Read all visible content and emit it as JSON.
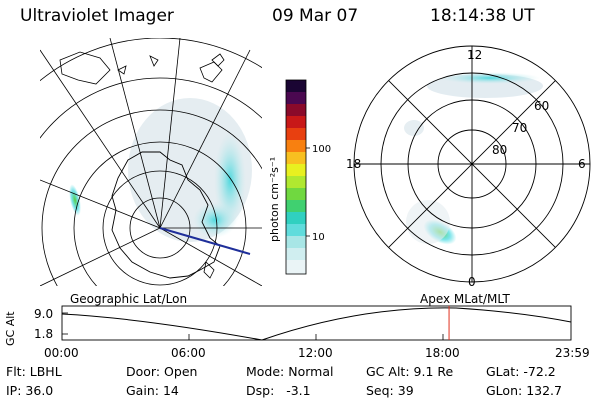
{
  "header": {
    "instrument": "Ultraviolet Imager",
    "date": "09 Mar 07",
    "time": "18:14:38 UT"
  },
  "colorbar": {
    "unit": "photon cm⁻²s⁻¹",
    "ticks": [
      "100",
      "10"
    ]
  },
  "polar_plot": {
    "mlt_labels": [
      "12",
      "18",
      "6",
      "0"
    ],
    "lat_labels": [
      "60",
      "70",
      "80"
    ]
  },
  "timeline": {
    "left_title": "Geographic Lat/Lon",
    "right_title": "Apex MLat/MLT",
    "ylabel": "GC Alt",
    "ymax": "9.0",
    "ymin": "1.8",
    "xticks": [
      "00:00",
      "06:00",
      "12:00",
      "18:00",
      "23:59"
    ],
    "current_marker_hours": 18.25
  },
  "status": {
    "flt_label": "Flt:",
    "flt_value": "LBHL",
    "ip_label": "IP:",
    "ip_value": "36.0",
    "door_label": "Door:",
    "door_value": "Open",
    "gain_label": "Gain:",
    "gain_value": "14",
    "mode_label": "Mode:",
    "mode_value": "Normal",
    "dsp_label": "Dsp:",
    "dsp_value": "-3.1",
    "gcalt_label": "GC Alt:",
    "gcalt_value": "9.1 Re",
    "seq_label": "Seq:",
    "seq_value": "39",
    "glat_label": "GLat:",
    "glat_value": "-72.2",
    "glon_label": "GLon:",
    "glon_value": "132.7"
  },
  "colors": {
    "grid": "#000000",
    "track": "#1f2f9a",
    "marker": "#e0301e",
    "aurora_cyan": "#40d8e0",
    "aurora_green": "#58d040"
  }
}
